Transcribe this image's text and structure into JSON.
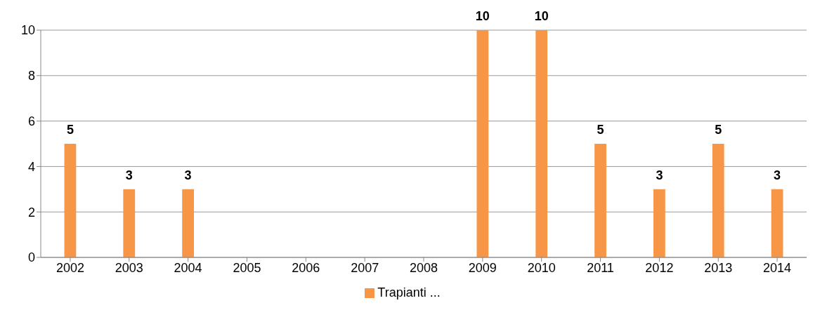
{
  "chart_data": {
    "type": "bar",
    "categories": [
      "2002",
      "2003",
      "2004",
      "2005",
      "2006",
      "2007",
      "2008",
      "2009",
      "2010",
      "2011",
      "2012",
      "2013",
      "2014"
    ],
    "series": [
      {
        "name": "Trapianti ...",
        "color": "#f79646",
        "values": [
          5,
          3,
          3,
          null,
          null,
          null,
          null,
          10,
          10,
          5,
          3,
          5,
          3
        ]
      }
    ],
    "ylim": [
      0,
      10
    ],
    "yticks": [
      0,
      2,
      4,
      6,
      8,
      10
    ],
    "grid": "y",
    "legend": "bottom",
    "data_labels": true
  }
}
